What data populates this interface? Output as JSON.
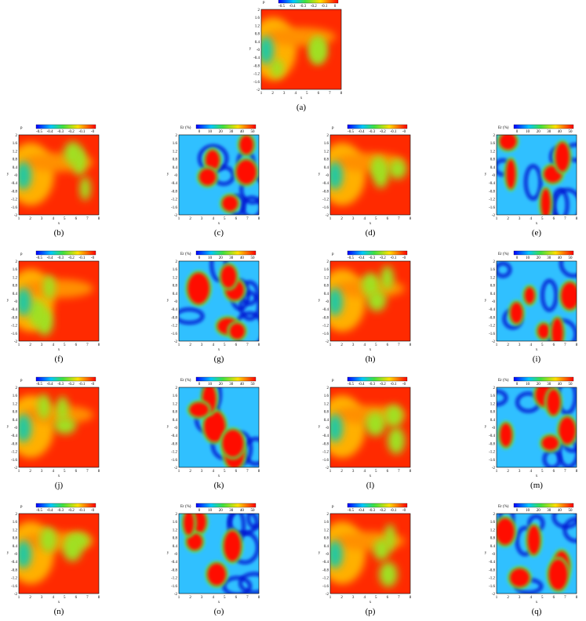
{
  "axes": {
    "xlabel": "x",
    "ylabel": "y",
    "xticks": [
      "1",
      "2",
      "3",
      "4",
      "5",
      "6",
      "7",
      "8"
    ],
    "yticks": [
      "2",
      "1.6",
      "1.2",
      "0.8",
      "0.4",
      "-0",
      "-0.4",
      "-0.8",
      "-1.2",
      "-1.6",
      "-2"
    ]
  },
  "colorbars": {
    "p0": {
      "title": "p",
      "ticks": [
        "-0.5",
        "-0.4",
        "-0.3",
        "-0.2",
        "-0.1",
        "0"
      ]
    },
    "p": {
      "title": "p",
      "ticks": [
        "-0.5",
        "-0.4",
        "-0.3",
        "-0.2",
        "-0.1",
        "-0"
      ]
    },
    "er": {
      "title": "Er (%)",
      "ticks": [
        "0",
        "10",
        "20",
        "30",
        "40",
        "50"
      ]
    }
  },
  "panels": [
    {
      "label": "(a)",
      "colorbar": "p0"
    },
    {
      "label": "(b)",
      "colorbar": "p"
    },
    {
      "label": "(c)",
      "colorbar": "er"
    },
    {
      "label": "(d)",
      "colorbar": "p"
    },
    {
      "label": "(e)",
      "colorbar": "er"
    },
    {
      "label": "(f)",
      "colorbar": "p"
    },
    {
      "label": "(g)",
      "colorbar": "er"
    },
    {
      "label": "(h)",
      "colorbar": "p"
    },
    {
      "label": "(i)",
      "colorbar": "er"
    },
    {
      "label": "(j)",
      "colorbar": "p"
    },
    {
      "label": "(k)",
      "colorbar": "er"
    },
    {
      "label": "(l)",
      "colorbar": "p"
    },
    {
      "label": "(m)",
      "colorbar": "er"
    },
    {
      "label": "(n)",
      "colorbar": "p"
    },
    {
      "label": "(o)",
      "colorbar": "er"
    },
    {
      "label": "(p)",
      "colorbar": "p"
    },
    {
      "label": "(q)",
      "colorbar": "er"
    }
  ]
}
